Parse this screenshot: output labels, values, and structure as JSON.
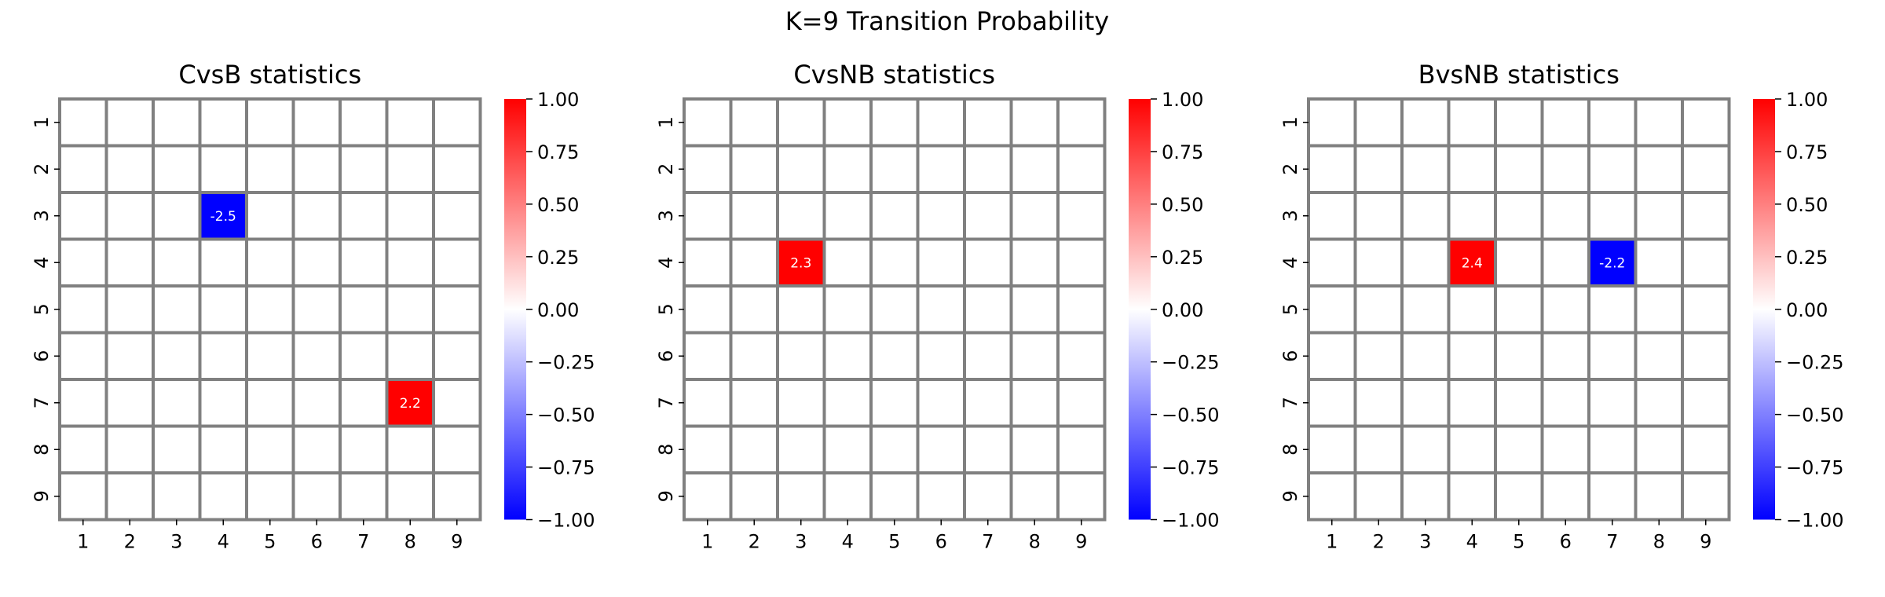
{
  "figure": {
    "suptitle": "K=9 Transition Probability"
  },
  "chart_data": [
    {
      "type": "heatmap",
      "title": "CvsB statistics",
      "x_ticks": [
        "1",
        "2",
        "3",
        "4",
        "5",
        "6",
        "7",
        "8",
        "9"
      ],
      "y_ticks": [
        "1",
        "2",
        "3",
        "4",
        "5",
        "6",
        "7",
        "8",
        "9"
      ],
      "color_range": [
        -1.0,
        1.0
      ],
      "colormap": "bwr",
      "colorbar_ticks": [
        "1.00",
        "0.75",
        "0.50",
        "0.25",
        "0.00",
        "−0.25",
        "−0.50",
        "−0.75",
        "−1.00"
      ],
      "cells": [
        {
          "row": "3",
          "col": "4",
          "value": -2.5,
          "label": "-2.5"
        },
        {
          "row": "7",
          "col": "8",
          "value": 2.2,
          "label": "2.2"
        }
      ]
    },
    {
      "type": "heatmap",
      "title": "CvsNB statistics",
      "x_ticks": [
        "1",
        "2",
        "3",
        "4",
        "5",
        "6",
        "7",
        "8",
        "9"
      ],
      "y_ticks": [
        "1",
        "2",
        "3",
        "4",
        "5",
        "6",
        "7",
        "8",
        "9"
      ],
      "color_range": [
        -1.0,
        1.0
      ],
      "colormap": "bwr",
      "colorbar_ticks": [
        "1.00",
        "0.75",
        "0.50",
        "0.25",
        "0.00",
        "−0.25",
        "−0.50",
        "−0.75",
        "−1.00"
      ],
      "cells": [
        {
          "row": "4",
          "col": "3",
          "value": 2.3,
          "label": "2.3"
        }
      ]
    },
    {
      "type": "heatmap",
      "title": "BvsNB statistics",
      "x_ticks": [
        "1",
        "2",
        "3",
        "4",
        "5",
        "6",
        "7",
        "8",
        "9"
      ],
      "y_ticks": [
        "1",
        "2",
        "3",
        "4",
        "5",
        "6",
        "7",
        "8",
        "9"
      ],
      "color_range": [
        -1.0,
        1.0
      ],
      "colormap": "bwr",
      "colorbar_ticks": [
        "1.00",
        "0.75",
        "0.50",
        "0.25",
        "0.00",
        "−0.25",
        "−0.50",
        "−0.75",
        "−1.00"
      ],
      "cells": [
        {
          "row": "4",
          "col": "4",
          "value": 2.4,
          "label": "2.4"
        },
        {
          "row": "4",
          "col": "7",
          "value": -2.2,
          "label": "-2.2"
        }
      ]
    }
  ]
}
